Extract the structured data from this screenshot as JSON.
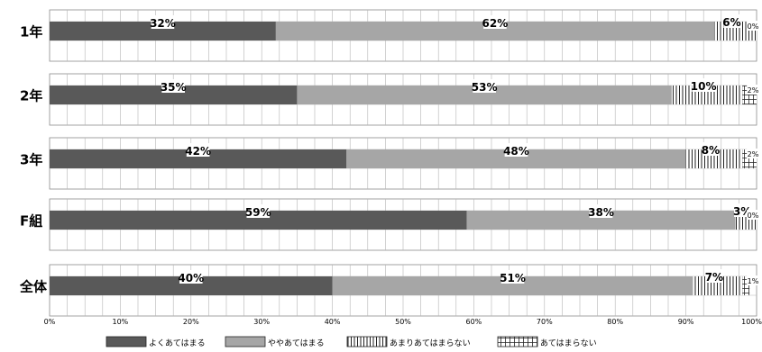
{
  "chart_data": {
    "type": "bar",
    "orientation": "horizontal",
    "stacked": true,
    "categories": [
      "1年",
      "2年",
      "3年",
      "F組",
      "全体"
    ],
    "series": [
      {
        "name": "よくあてはまる",
        "values": [
          32,
          35,
          42,
          59,
          40
        ],
        "color": "#595959",
        "pattern": "solid"
      },
      {
        "name": "ややあてはまる",
        "values": [
          62,
          53,
          48,
          38,
          51
        ],
        "color": "#a6a6a6",
        "pattern": "solid"
      },
      {
        "name": "あまりあてはまらない",
        "values": [
          6,
          10,
          8,
          3,
          7
        ],
        "color": "#ffffff",
        "pattern": "vertical-lines"
      },
      {
        "name": "あてはまらない",
        "values": [
          0,
          2,
          2,
          0,
          1
        ],
        "color": "#ffffff",
        "pattern": "grid"
      }
    ],
    "value_labels": [
      [
        "32%",
        "62%",
        "6%",
        "0%"
      ],
      [
        "35%",
        "53%",
        "10%",
        "2%"
      ],
      [
        "42%",
        "48%",
        "8%",
        "2%"
      ],
      [
        "59%",
        "38%",
        "3%",
        "0%"
      ],
      [
        "40%",
        "51%",
        "7%",
        "1%"
      ]
    ],
    "xlim": [
      0,
      100
    ],
    "xticks": [
      "0%",
      "10%",
      "20%",
      "30%",
      "40%",
      "50%",
      "60%",
      "70%",
      "80%",
      "90%",
      "100%"
    ],
    "grid": true,
    "legend_position": "bottom",
    "title": "",
    "xlabel": "",
    "ylabel": ""
  }
}
